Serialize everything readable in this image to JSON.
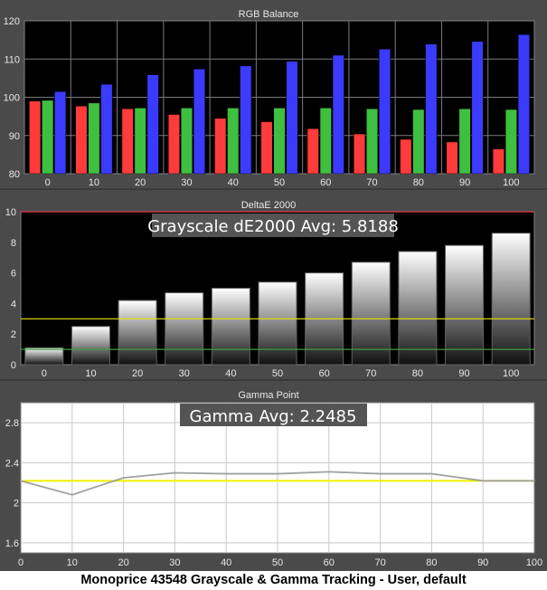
{
  "caption": "Monoprice 43548 Grayscale & Gamma Tracking - User, default",
  "colors": {
    "red": "#ff3b3b",
    "green": "#3fbf3f",
    "blue": "#3b3bff",
    "limit_red": "#e04040",
    "ref_yellow": "#e8e000",
    "ref_green": "#3aa03a",
    "gamma_line": "#a0a0a0",
    "gamma_target": "#f0f000"
  },
  "chart_data": [
    {
      "type": "bar",
      "title": "RGB Balance",
      "categories": [
        "0",
        "10",
        "20",
        "30",
        "40",
        "50",
        "60",
        "70",
        "80",
        "90",
        "100"
      ],
      "series": [
        {
          "color": "#ff3b3b",
          "values": [
            99,
            97.7,
            97,
            95.5,
            94.5,
            93.6,
            91.8,
            90.4,
            89,
            88.3,
            86.5
          ]
        },
        {
          "color": "#3fbf3f",
          "values": [
            99.2,
            98.5,
            97.2,
            97.2,
            97.2,
            97.2,
            97.2,
            97,
            96.8,
            97,
            96.8
          ]
        },
        {
          "color": "#3b3bff",
          "values": [
            101.5,
            103.4,
            105.9,
            107.4,
            108.2,
            109.4,
            111,
            112.6,
            113.9,
            114.6,
            116.4
          ]
        }
      ],
      "ylim": [
        80,
        120
      ],
      "yticks": [
        80,
        90,
        100,
        110,
        120
      ],
      "grid": true
    },
    {
      "type": "bar",
      "title": "DeltaE 2000",
      "annotation": "Grayscale dE2000 Avg: 5.8188",
      "categories": [
        "0",
        "10",
        "20",
        "30",
        "40",
        "50",
        "60",
        "70",
        "80",
        "90",
        "100"
      ],
      "values": [
        1.1,
        2.5,
        4.2,
        4.7,
        5.0,
        5.4,
        6.0,
        6.7,
        7.4,
        7.8,
        8.6
      ],
      "ylim": [
        0,
        10
      ],
      "yticks": [
        0,
        2,
        4,
        6,
        8,
        10
      ],
      "reference_lines": [
        {
          "value": 10,
          "color": "#e04040"
        },
        {
          "value": 3,
          "color": "#e8e000"
        },
        {
          "value": 1,
          "color": "#3aa03a"
        }
      ]
    },
    {
      "type": "line",
      "title": "Gamma Point",
      "annotation": "Gamma Avg: 2.2485",
      "x": [
        0,
        10,
        20,
        30,
        40,
        50,
        60,
        70,
        80,
        90,
        100
      ],
      "y": [
        2.22,
        2.08,
        2.25,
        2.3,
        2.29,
        2.29,
        2.31,
        2.29,
        2.29,
        2.22,
        2.22
      ],
      "xlim": [
        0,
        100
      ],
      "xticks": [
        0,
        10,
        20,
        30,
        40,
        50,
        60,
        70,
        80,
        90,
        100
      ],
      "ylim": [
        1.5,
        3.0
      ],
      "yticks": [
        1.6,
        2,
        2.4,
        2.8
      ],
      "target": 2.22,
      "grid": true
    }
  ]
}
